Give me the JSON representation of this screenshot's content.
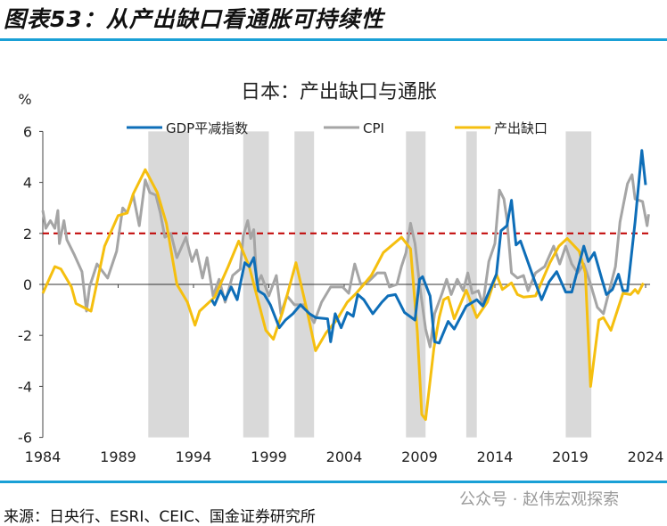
{
  "figure_title": "图表53：从产出缺口看通胀可持续性",
  "source": "来源：日央行、ESRI、CEIC、国金证券研究所",
  "watermark": "公众号 · 赵伟宏观探索",
  "chart_data": {
    "type": "line",
    "title": "日本：产出缺口与通胀",
    "ylabel": "%",
    "xlabel": "",
    "xlim": [
      1984,
      2024.3
    ],
    "ylim": [
      -6,
      6
    ],
    "yticks": [
      6,
      4,
      2,
      0,
      -2,
      -4,
      -6
    ],
    "xticks": [
      "1984",
      "1989",
      "1994",
      "1999",
      "2004",
      "2009",
      "2014",
      "2019",
      "2024"
    ],
    "reference_line": {
      "value": 2,
      "color": "#c00000",
      "style": "dashed"
    },
    "shaded_periods": [
      [
        1991.0,
        1993.7
      ],
      [
        1997.3,
        1999.0
      ],
      [
        2000.7,
        2002.0
      ],
      [
        2008.1,
        2009.4
      ],
      [
        2012.1,
        2012.8
      ],
      [
        2018.7,
        2020.4
      ]
    ],
    "legend_position": "top",
    "series": [
      {
        "name": "GDP平减指数",
        "color": "#0e6eb8",
        "points": [
          [
            1995.2,
            -0.6
          ],
          [
            1995.4,
            -0.8
          ],
          [
            1995.8,
            -0.25
          ],
          [
            1996.1,
            -0.6
          ],
          [
            1996.5,
            -0.1
          ],
          [
            1996.9,
            -0.6
          ],
          [
            1997.1,
            0
          ],
          [
            1997.4,
            0.85
          ],
          [
            1997.7,
            0.7
          ],
          [
            1998.0,
            1.05
          ],
          [
            1998.3,
            -0.25
          ],
          [
            1998.7,
            -0.4
          ],
          [
            1999.1,
            -0.8
          ],
          [
            1999.7,
            -1.7
          ],
          [
            2000.1,
            -1.4
          ],
          [
            2000.6,
            -1.15
          ],
          [
            2001.1,
            -0.8
          ],
          [
            2001.7,
            -1.15
          ],
          [
            2002.1,
            -1.3
          ],
          [
            2002.9,
            -1.35
          ],
          [
            2003.1,
            -2.25
          ],
          [
            2003.4,
            -1.15
          ],
          [
            2003.8,
            -1.7
          ],
          [
            2004.2,
            -1.1
          ],
          [
            2004.6,
            -1.25
          ],
          [
            2004.9,
            -0.4
          ],
          [
            2005.3,
            -0.6
          ],
          [
            2005.9,
            -1.15
          ],
          [
            2006.5,
            -0.7
          ],
          [
            2006.9,
            -0.45
          ],
          [
            2007.4,
            -0.4
          ],
          [
            2008.0,
            -1.1
          ],
          [
            2008.7,
            -1.4
          ],
          [
            2009.0,
            0.2
          ],
          [
            2009.2,
            0.3
          ],
          [
            2009.7,
            -0.45
          ],
          [
            2010.0,
            -2.25
          ],
          [
            2010.3,
            -2.3
          ],
          [
            2010.9,
            -1.45
          ],
          [
            2011.3,
            -1.75
          ],
          [
            2012.1,
            -0.85
          ],
          [
            2012.8,
            -0.6
          ],
          [
            2013.2,
            -0.85
          ],
          [
            2014.1,
            0.4
          ],
          [
            2014.4,
            2.1
          ],
          [
            2014.8,
            2.3
          ],
          [
            2015.1,
            3.3
          ],
          [
            2015.4,
            1.55
          ],
          [
            2015.7,
            1.7
          ],
          [
            2016.6,
            0.2
          ],
          [
            2017.1,
            -0.6
          ],
          [
            2017.6,
            0.1
          ],
          [
            2018.1,
            0.5
          ],
          [
            2018.7,
            -0.3
          ],
          [
            2019.1,
            -0.3
          ],
          [
            2019.9,
            1.5
          ],
          [
            2020.2,
            0.9
          ],
          [
            2020.6,
            1.25
          ],
          [
            2021.1,
            0.2
          ],
          [
            2021.4,
            -0.4
          ],
          [
            2021.8,
            -0.2
          ],
          [
            2022.2,
            0.4
          ],
          [
            2022.5,
            -0.25
          ],
          [
            2022.8,
            -0.25
          ],
          [
            2023.3,
            2.45
          ],
          [
            2023.75,
            5.25
          ],
          [
            2024.0,
            3.9
          ]
        ]
      },
      {
        "name": "CPI",
        "color": "#a5a5a5",
        "points": [
          [
            1984.0,
            2.9
          ],
          [
            1984.2,
            2.2
          ],
          [
            1984.5,
            2.5
          ],
          [
            1984.8,
            2.2
          ],
          [
            1985.0,
            2.9
          ],
          [
            1985.1,
            1.6
          ],
          [
            1985.4,
            2.5
          ],
          [
            1985.6,
            1.75
          ],
          [
            1986.1,
            1.15
          ],
          [
            1986.6,
            0.5
          ],
          [
            1986.9,
            -1.05
          ],
          [
            1987.1,
            -0.1
          ],
          [
            1987.6,
            0.8
          ],
          [
            1988.3,
            0.25
          ],
          [
            1988.9,
            1.3
          ],
          [
            1989.3,
            3.0
          ],
          [
            1989.6,
            2.8
          ],
          [
            1990.0,
            3.5
          ],
          [
            1990.4,
            2.3
          ],
          [
            1990.8,
            4.1
          ],
          [
            1991.1,
            3.6
          ],
          [
            1991.5,
            3.5
          ],
          [
            1991.8,
            2.8
          ],
          [
            1992.1,
            1.85
          ],
          [
            1992.5,
            2.0
          ],
          [
            1992.9,
            1.05
          ],
          [
            1993.5,
            1.85
          ],
          [
            1993.9,
            0.9
          ],
          [
            1994.2,
            1.35
          ],
          [
            1994.6,
            0.25
          ],
          [
            1994.9,
            1.05
          ],
          [
            1995.3,
            -0.45
          ],
          [
            1995.7,
            0.2
          ],
          [
            1996.1,
            -0.7
          ],
          [
            1996.6,
            0.35
          ],
          [
            1997.1,
            0.6
          ],
          [
            1997.3,
            1.9
          ],
          [
            1997.6,
            2.5
          ],
          [
            1997.8,
            1.8
          ],
          [
            1998.0,
            2.15
          ],
          [
            1998.2,
            0
          ],
          [
            1998.5,
            0.35
          ],
          [
            1999.0,
            -0.45
          ],
          [
            1999.5,
            0.35
          ],
          [
            1999.8,
            -1.15
          ],
          [
            2000.2,
            -0.45
          ],
          [
            2000.7,
            -0.8
          ],
          [
            2001.3,
            -0.8
          ],
          [
            2002.0,
            -1.5
          ],
          [
            2002.5,
            -0.7
          ],
          [
            2003.1,
            -0.1
          ],
          [
            2003.9,
            -0.1
          ],
          [
            2004.3,
            -0.35
          ],
          [
            2004.7,
            0.8
          ],
          [
            2005.1,
            0
          ],
          [
            2005.6,
            0.1
          ],
          [
            2006.2,
            0.45
          ],
          [
            2006.7,
            0.45
          ],
          [
            2007.0,
            -0.1
          ],
          [
            2007.5,
            0
          ],
          [
            2007.8,
            0.7
          ],
          [
            2008.1,
            1.25
          ],
          [
            2008.4,
            2.4
          ],
          [
            2008.7,
            1.6
          ],
          [
            2009.0,
            0
          ],
          [
            2009.4,
            -1.75
          ],
          [
            2009.7,
            -2.45
          ],
          [
            2010.0,
            -1.15
          ],
          [
            2010.5,
            -0.35
          ],
          [
            2010.8,
            0.2
          ],
          [
            2011.1,
            -0.4
          ],
          [
            2011.5,
            0.2
          ],
          [
            2011.9,
            -0.25
          ],
          [
            2012.2,
            0.45
          ],
          [
            2012.5,
            -0.35
          ],
          [
            2012.9,
            -0.25
          ],
          [
            2013.2,
            -0.8
          ],
          [
            2013.6,
            0.9
          ],
          [
            2014.0,
            1.6
          ],
          [
            2014.3,
            3.7
          ],
          [
            2014.6,
            3.35
          ],
          [
            2014.8,
            2.55
          ],
          [
            2015.1,
            0.45
          ],
          [
            2015.5,
            0.25
          ],
          [
            2015.9,
            0.35
          ],
          [
            2016.2,
            -0.25
          ],
          [
            2016.7,
            0.45
          ],
          [
            2017.3,
            0.7
          ],
          [
            2017.9,
            1.5
          ],
          [
            2018.3,
            0.8
          ],
          [
            2018.7,
            1.5
          ],
          [
            2019.1,
            0.8
          ],
          [
            2019.5,
            0.45
          ],
          [
            2019.9,
            0.8
          ],
          [
            2020.3,
            0.1
          ],
          [
            2020.8,
            -0.9
          ],
          [
            2021.2,
            -1.15
          ],
          [
            2021.5,
            -0.45
          ],
          [
            2022.0,
            0.7
          ],
          [
            2022.3,
            2.45
          ],
          [
            2022.8,
            3.95
          ],
          [
            2023.1,
            4.3
          ],
          [
            2023.3,
            3.35
          ],
          [
            2023.8,
            3.25
          ],
          [
            2024.1,
            2.3
          ],
          [
            2024.2,
            2.75
          ]
        ]
      },
      {
        "name": "产出缺口",
        "color": "#f5bf0f",
        "points": [
          [
            1984.0,
            -0.35
          ],
          [
            1984.8,
            0.7
          ],
          [
            1985.2,
            0.6
          ],
          [
            1985.9,
            -0.1
          ],
          [
            1986.2,
            -0.75
          ],
          [
            1987.2,
            -1.05
          ],
          [
            1988.1,
            1.5
          ],
          [
            1989.0,
            2.7
          ],
          [
            1989.6,
            2.8
          ],
          [
            1990.0,
            3.55
          ],
          [
            1990.8,
            4.5
          ],
          [
            1991.6,
            3.6
          ],
          [
            1992.2,
            2.4
          ],
          [
            1992.9,
            0
          ],
          [
            1993.6,
            -0.7
          ],
          [
            1994.1,
            -1.6
          ],
          [
            1994.4,
            -1.05
          ],
          [
            1995.4,
            -0.5
          ],
          [
            1996.3,
            0.7
          ],
          [
            1997.0,
            1.7
          ],
          [
            1997.7,
            0.7
          ],
          [
            1998.8,
            -1.8
          ],
          [
            1999.3,
            -2.15
          ],
          [
            1999.9,
            -1.1
          ],
          [
            2000.8,
            0.85
          ],
          [
            2001.5,
            -0.95
          ],
          [
            2002.1,
            -2.6
          ],
          [
            2002.8,
            -1.9
          ],
          [
            2003.5,
            -1.4
          ],
          [
            2004.2,
            -0.7
          ],
          [
            2004.8,
            -0.35
          ],
          [
            2005.8,
            0.35
          ],
          [
            2006.6,
            1.25
          ],
          [
            2007.8,
            1.85
          ],
          [
            2008.4,
            1.4
          ],
          [
            2008.85,
            -1.85
          ],
          [
            2009.15,
            -5.1
          ],
          [
            2009.4,
            -5.3
          ],
          [
            2009.95,
            -2.5
          ],
          [
            2010.3,
            -1.3
          ],
          [
            2010.6,
            -0.6
          ],
          [
            2010.9,
            -0.5
          ],
          [
            2011.3,
            -1.35
          ],
          [
            2012.1,
            -0.23
          ],
          [
            2012.8,
            -1.3
          ],
          [
            2013.5,
            -0.7
          ],
          [
            2014.1,
            0.4
          ],
          [
            2014.5,
            -0.2
          ],
          [
            2015.1,
            0.06
          ],
          [
            2015.5,
            -0.4
          ],
          [
            2015.9,
            -0.5
          ],
          [
            2016.7,
            -0.45
          ],
          [
            2017.65,
            0.85
          ],
          [
            2018.25,
            1.5
          ],
          [
            2018.8,
            1.8
          ],
          [
            2019.6,
            1.3
          ],
          [
            2020.0,
            0.45
          ],
          [
            2020.35,
            -4.0
          ],
          [
            2020.9,
            -1.4
          ],
          [
            2021.2,
            -1.3
          ],
          [
            2021.7,
            -1.8
          ],
          [
            2022.5,
            -0.35
          ],
          [
            2023.0,
            -0.4
          ],
          [
            2023.3,
            -0.2
          ],
          [
            2023.5,
            -0.35
          ],
          [
            2023.85,
            0.05
          ]
        ]
      }
    ]
  }
}
